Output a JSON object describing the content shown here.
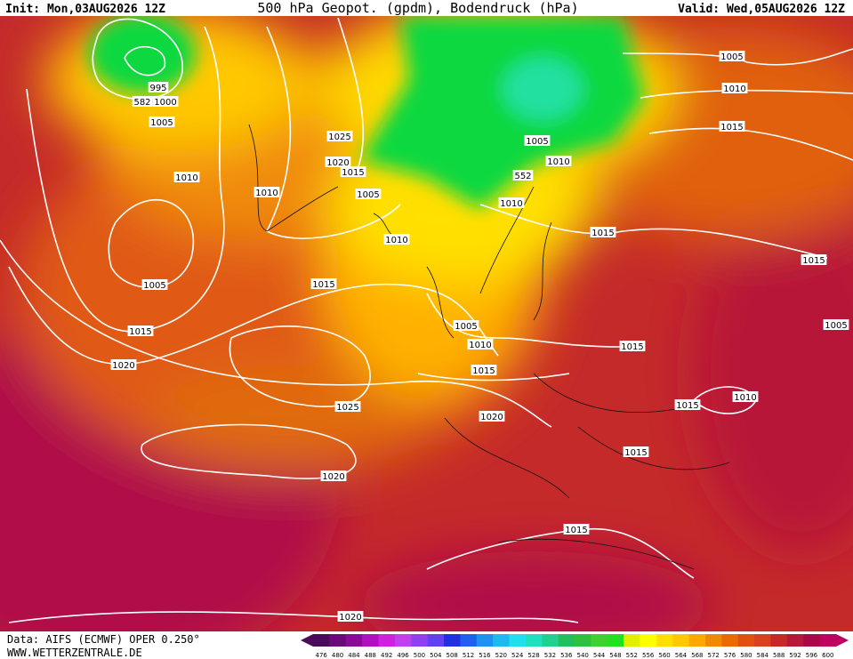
{
  "header": {
    "init": "Init: Mon,03AUG2026 12Z",
    "title": "500 hPa Geopot. (gpdm), Bodendruck (hPa)",
    "valid": "Valid: Wed,05AUG2026 12Z"
  },
  "isobar_labels": [
    "995",
    "582",
    "1000",
    "1005",
    "1010",
    "1005",
    "1015",
    "1020",
    "1025",
    "1020",
    "1015",
    "1010",
    "1005",
    "1010",
    "1015",
    "1025",
    "1020",
    "1020",
    "1005",
    "1010",
    "1015",
    "1005",
    "1010",
    "552",
    "1010",
    "1015",
    "1015",
    "1005",
    "1010",
    "1015",
    "1015",
    "1020",
    "1010",
    "1015",
    "1015",
    "1015",
    "1005"
  ],
  "colorbar": {
    "labels": [
      476,
      480,
      484,
      488,
      492,
      496,
      500,
      504,
      508,
      512,
      516,
      520,
      524,
      528,
      532,
      536,
      540,
      544,
      548,
      552,
      556,
      560,
      564,
      568,
      572,
      576,
      580,
      584,
      588,
      592,
      596,
      600
    ],
    "colors": [
      "#4b0a5a",
      "#6a0a7a",
      "#8a0a9a",
      "#b010c0",
      "#d020e0",
      "#c040f0",
      "#9040f0",
      "#6040f0",
      "#2030e0",
      "#2060f0",
      "#2090f0",
      "#20b8f0",
      "#20e0f0",
      "#20e0c0",
      "#20d090",
      "#20c060",
      "#30c040",
      "#40d030",
      "#20e020",
      "#e0f000",
      "#ffff00",
      "#ffe000",
      "#ffc800",
      "#ffa800",
      "#f08800",
      "#e86a00",
      "#e05010",
      "#d84020",
      "#c82828",
      "#b81838",
      "#a80848",
      "#c00060"
    ]
  },
  "footer": {
    "source": "Data: AIFS (ECMWF) OPER 0.250°",
    "website": "WWW.WETTERZENTRALE.DE"
  }
}
